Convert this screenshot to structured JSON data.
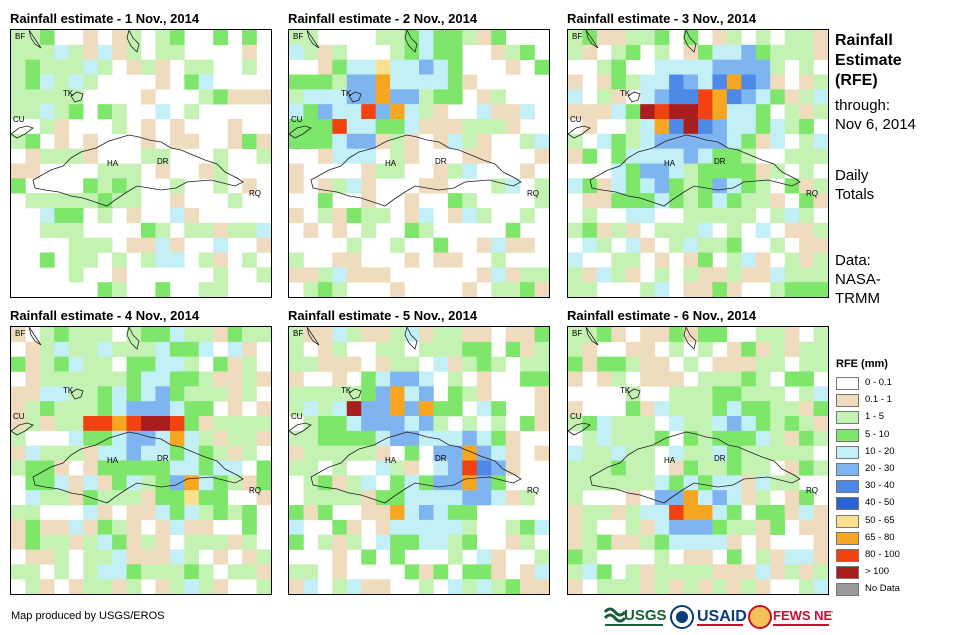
{
  "panels": [
    {
      "title": "Rainfall estimate - 1 Nov., 2014",
      "seed": 11,
      "blobs": [
        {
          "cx": 2,
          "cy": 3,
          "r": 3,
          "cls": 3
        },
        {
          "cx": 7,
          "cy": 10,
          "r": 2,
          "cls": 3
        },
        {
          "cx": 3,
          "cy": 12,
          "r": 2,
          "cls": 3
        }
      ],
      "coverage": 0.45,
      "hot": []
    },
    {
      "title": "Rainfall estimate - 2 Nov., 2014",
      "seed": 23,
      "blobs": [
        {
          "cx": 6,
          "cy": 4,
          "r": 3,
          "cls": 6
        },
        {
          "cx": 2,
          "cy": 5,
          "r": 3,
          "cls": 5
        },
        {
          "cx": 9,
          "cy": 2,
          "r": 3,
          "cls": 5
        },
        {
          "cx": 4,
          "cy": 7,
          "r": 2,
          "cls": 5
        }
      ],
      "coverage": 0.5,
      "hot": [
        [
          6,
          3,
          9
        ],
        [
          6,
          4,
          9
        ],
        [
          5,
          5,
          10
        ],
        [
          7,
          5,
          9
        ],
        [
          6,
          2,
          8
        ],
        [
          3,
          6,
          10
        ]
      ]
    },
    {
      "title": "Rainfall estimate - 3 Nov., 2014",
      "seed": 37,
      "blobs": [
        {
          "cx": 8,
          "cy": 5,
          "r": 4,
          "cls": 7
        },
        {
          "cx": 11,
          "cy": 3,
          "r": 3,
          "cls": 6
        },
        {
          "cx": 5,
          "cy": 9,
          "r": 3,
          "cls": 5
        },
        {
          "cx": 10,
          "cy": 10,
          "r": 3,
          "cls": 4
        }
      ],
      "coverage": 0.7,
      "hot": [
        [
          7,
          5,
          11
        ],
        [
          8,
          5,
          11
        ],
        [
          8,
          6,
          11
        ],
        [
          9,
          5,
          10
        ],
        [
          6,
          5,
          10
        ],
        [
          5,
          5,
          11
        ],
        [
          9,
          4,
          10
        ],
        [
          10,
          4,
          9
        ],
        [
          11,
          3,
          9
        ],
        [
          6,
          6,
          9
        ],
        [
          10,
          5,
          9
        ]
      ]
    },
    {
      "title": "Rainfall estimate - 4 Nov., 2014",
      "seed": 41,
      "blobs": [
        {
          "cx": 9,
          "cy": 6,
          "r": 4,
          "cls": 6
        },
        {
          "cx": 12,
          "cy": 10,
          "r": 3,
          "cls": 5
        },
        {
          "cx": 4,
          "cy": 2,
          "r": 3,
          "cls": 3
        },
        {
          "cx": 10,
          "cy": 2,
          "r": 3,
          "cls": 4
        }
      ],
      "coverage": 0.8,
      "hot": [
        [
          5,
          6,
          10
        ],
        [
          6,
          6,
          10
        ],
        [
          8,
          6,
          10
        ],
        [
          9,
          6,
          11
        ],
        [
          10,
          6,
          11
        ],
        [
          11,
          6,
          10
        ],
        [
          7,
          6,
          9
        ],
        [
          11,
          7,
          9
        ],
        [
          12,
          10,
          9
        ],
        [
          12,
          11,
          8
        ]
      ]
    },
    {
      "title": "Rainfall estimate - 5 Nov., 2014",
      "seed": 53,
      "blobs": [
        {
          "cx": 7,
          "cy": 5,
          "r": 3,
          "cls": 6
        },
        {
          "cx": 12,
          "cy": 9,
          "r": 3,
          "cls": 6
        },
        {
          "cx": 9,
          "cy": 12,
          "r": 3,
          "cls": 5
        },
        {
          "cx": 3,
          "cy": 6,
          "r": 3,
          "cls": 4
        }
      ],
      "coverage": 0.65,
      "hot": [
        [
          7,
          4,
          9
        ],
        [
          7,
          5,
          9
        ],
        [
          9,
          5,
          9
        ],
        [
          4,
          5,
          11
        ],
        [
          12,
          8,
          9
        ],
        [
          12,
          9,
          10
        ],
        [
          12,
          10,
          9
        ],
        [
          7,
          12,
          9
        ]
      ]
    },
    {
      "title": "Rainfall estimate - 6 Nov., 2014",
      "seed": 67,
      "blobs": [
        {
          "cx": 8,
          "cy": 12,
          "r": 3,
          "cls": 6
        },
        {
          "cx": 11,
          "cy": 6,
          "r": 4,
          "cls": 4
        },
        {
          "cx": 3,
          "cy": 8,
          "r": 3,
          "cls": 3
        },
        {
          "cx": 10,
          "cy": 11,
          "r": 2,
          "cls": 5
        }
      ],
      "coverage": 0.7,
      "hot": [
        [
          8,
          11,
          9
        ],
        [
          9,
          12,
          9
        ],
        [
          7,
          12,
          10
        ],
        [
          8,
          12,
          9
        ]
      ]
    }
  ],
  "place_labels": {
    "bf": "BF",
    "tk": "TK",
    "cu": "CU",
    "ha": "HA",
    "dr": "DR",
    "rq": "RQ"
  },
  "side": {
    "title_lines": [
      "Rainfall",
      "Estimate",
      "(RFE)"
    ],
    "through_label": "through:",
    "through_date": "Nov 6, 2014",
    "totals_lines": [
      "Daily",
      "Totals"
    ],
    "data_lines": [
      "Data:",
      "NASA-",
      "TRMM"
    ]
  },
  "legend": {
    "title": "RFE (mm)",
    "items": [
      {
        "label": "0 - 0.1",
        "color": "#ffffff"
      },
      {
        "label": "0.1 - 1",
        "color": "#efdcbe"
      },
      {
        "label": "1 - 5",
        "color": "#c3f2b3"
      },
      {
        "label": "5 - 10",
        "color": "#7ee66a"
      },
      {
        "label": "10 - 20",
        "color": "#c2f0f6"
      },
      {
        "label": "20 - 30",
        "color": "#7eb4ef"
      },
      {
        "label": "30 - 40",
        "color": "#4d89e6"
      },
      {
        "label": "40 - 50",
        "color": "#2a62d6"
      },
      {
        "label": "50 - 65",
        "color": "#fde08e"
      },
      {
        "label": "65 - 80",
        "color": "#f7a622"
      },
      {
        "label": "80 - 100",
        "color": "#f2420f"
      },
      {
        "label": "> 100",
        "color": "#a81d1d"
      },
      {
        "label": "No Data",
        "color": "#999999"
      }
    ]
  },
  "footer": "Map produced by USGS/EROS",
  "logos": {
    "usgs": "USGS",
    "usaid": "USAID",
    "fewsnet": "FEWS NET"
  }
}
